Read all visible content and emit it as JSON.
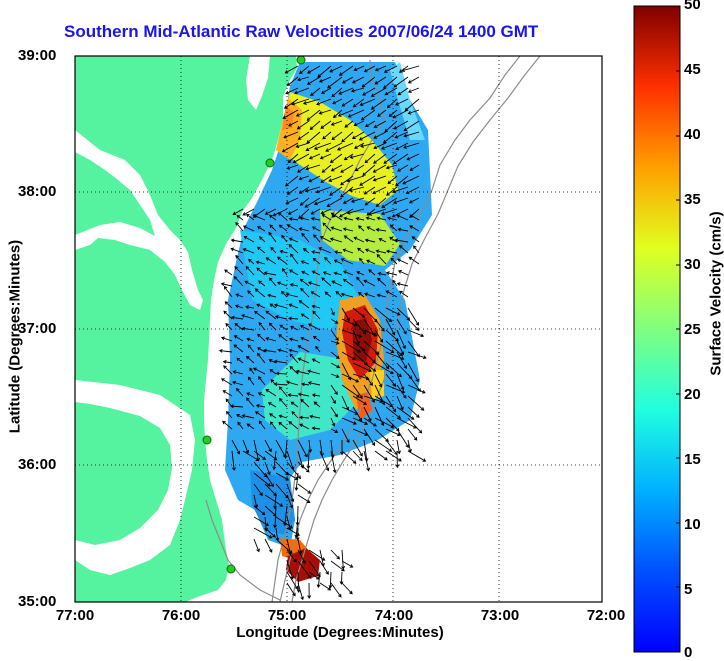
{
  "title": "Southern Mid-Atlantic Raw Velocities 2007/06/24 1400 GMT",
  "x_axis": {
    "label": "Longitude (Degrees:Minutes)",
    "ticks": [
      "77:00",
      "76:00",
      "75:00",
      "74:00",
      "73:00",
      "72:00"
    ]
  },
  "y_axis": {
    "label": "Latitude (Degrees:Minutes)",
    "ticks": [
      "39:00",
      "38:00",
      "37:00",
      "36:00",
      "35:00"
    ]
  },
  "colorbar": {
    "label": "Surface Velocity (cm/s)",
    "ticks": [
      "50",
      "45",
      "40",
      "35",
      "30",
      "25",
      "20",
      "15",
      "10",
      "5",
      "0"
    ],
    "min": 0,
    "max": 50,
    "colormap": "jet"
  },
  "map": {
    "grid": "dotted",
    "lon_range": [
      -77,
      -72
    ],
    "lat_range": [
      35,
      39
    ],
    "land_color": "#55f2a0",
    "water_color": "#ffffff",
    "bathymetry_color": "#888888",
    "vector_color": "#000000",
    "station_color": "#22cc22"
  }
}
